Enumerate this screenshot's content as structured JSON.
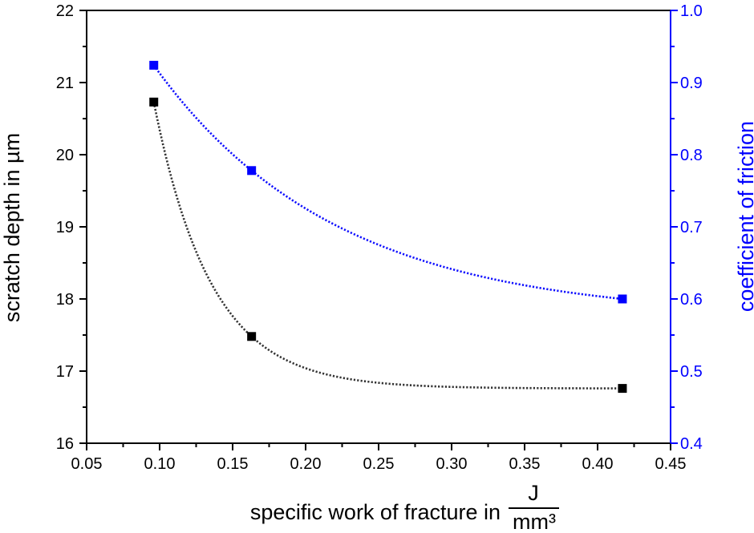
{
  "chart_data": {
    "type": "scatter",
    "xlabel": "specific work of fracture in",
    "xlabel_unit_numerator": "J",
    "xlabel_unit_denominator": "mm³",
    "ylabel_left": "scratch depth in µm",
    "ylabel_right": "coefficient of friction",
    "xlim": [
      0.05,
      0.45
    ],
    "ylim_left": [
      16,
      22
    ],
    "ylim_right": [
      0.4,
      1.0
    ],
    "x_ticks": [
      "0.05",
      "0.10",
      "0.15",
      "0.20",
      "0.25",
      "0.30",
      "0.35",
      "0.40",
      "0.45"
    ],
    "y_left_ticks": [
      "16",
      "17",
      "18",
      "19",
      "20",
      "21",
      "22"
    ],
    "y_right_ticks": [
      "0.4",
      "0.5",
      "0.6",
      "0.7",
      "0.8",
      "0.9",
      "1.0"
    ],
    "grid": false,
    "legend": "none",
    "series": [
      {
        "axis": "left",
        "marker": "square",
        "line": "dotted fit curve",
        "color": "#000000",
        "x": [
          0.096,
          0.163,
          0.417
        ],
        "y": [
          20.73,
          17.48,
          16.76
        ]
      },
      {
        "axis": "right",
        "marker": "square",
        "line": "dotted fit curve",
        "color": "#0000ff",
        "x": [
          0.096,
          0.163,
          0.417
        ],
        "y": [
          0.924,
          0.778,
          0.6
        ]
      }
    ]
  }
}
